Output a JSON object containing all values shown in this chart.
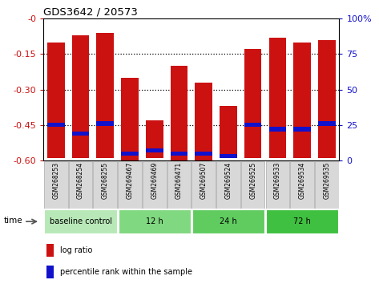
{
  "title": "GDS3642 / 20573",
  "samples": [
    "GSM268253",
    "GSM268254",
    "GSM268255",
    "GSM269467",
    "GSM269469",
    "GSM269471",
    "GSM269507",
    "GSM269524",
    "GSM269525",
    "GSM269533",
    "GSM269534",
    "GSM269535"
  ],
  "bar_tops": [
    -0.1,
    -0.07,
    -0.06,
    -0.25,
    -0.43,
    -0.2,
    -0.27,
    -0.37,
    -0.13,
    -0.08,
    -0.1,
    -0.09
  ],
  "bar_bottoms": [
    -0.59,
    -0.59,
    -0.59,
    -0.6,
    -0.59,
    -0.6,
    -0.6,
    -0.59,
    -0.59,
    -0.59,
    -0.59,
    -0.59
  ],
  "percentile_ranks": [
    25,
    19,
    26,
    5,
    7,
    5,
    5,
    3,
    25,
    22,
    22,
    26
  ],
  "groups": [
    {
      "label": "baseline control",
      "start": 0,
      "end": 3,
      "color": "#b8e8b8"
    },
    {
      "label": "12 h",
      "start": 3,
      "end": 6,
      "color": "#80d880"
    },
    {
      "label": "24 h",
      "start": 6,
      "end": 9,
      "color": "#60cc60"
    },
    {
      "label": "72 h",
      "start": 9,
      "end": 12,
      "color": "#40c040"
    }
  ],
  "ylim_left": [
    -0.6,
    0.0
  ],
  "yticks_left": [
    0.0,
    -0.15,
    -0.3,
    -0.45,
    -0.6
  ],
  "ylim_right": [
    0,
    100
  ],
  "yticks_right": [
    0,
    25,
    50,
    75,
    100
  ],
  "bar_color": "#cc1111",
  "marker_color": "#1111cc",
  "bg_color": "#ffffff",
  "tick_label_color_left": "#cc1111",
  "tick_label_color_right": "#1111cc",
  "sample_box_color": "#d8d8d8",
  "sample_box_edge": "#aaaaaa"
}
